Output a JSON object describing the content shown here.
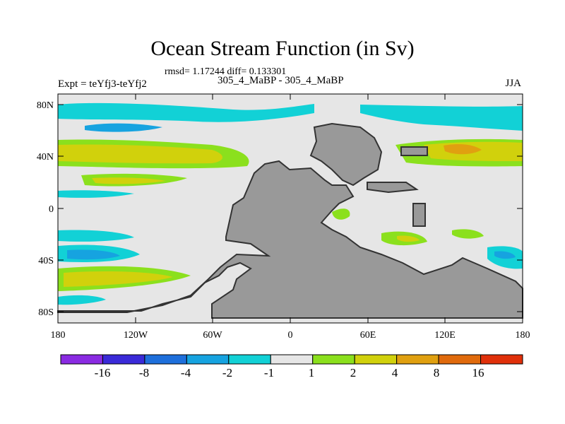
{
  "title": "Ocean Stream Function (in Sv)",
  "stats": "rmsd= 1.17244  diff= 0.133301",
  "experiment": "Expt = teYfj3-teYfj2",
  "period": "305_4_MaBP - 305_4_MaBP",
  "season": "JJA",
  "axes": {
    "lat_ticks": [
      "80N",
      "40N",
      "0",
      "40S",
      "80S"
    ],
    "lon_ticks": [
      "180",
      "120W",
      "60W",
      "0",
      "60E",
      "120E",
      "180"
    ]
  },
  "colorbar": {
    "colors": [
      "#8a2be2",
      "#3a2ad8",
      "#1e6fdb",
      "#16a3e0",
      "#12d1d6",
      "#e6e6e6",
      "#8be01d",
      "#d1d10c",
      "#e0a010",
      "#e06a0c",
      "#e0300a"
    ],
    "labels": [
      "-16",
      "-8",
      "-4",
      "-2",
      "-1",
      "1",
      "2",
      "4",
      "8",
      "16"
    ]
  },
  "colors": {
    "land": "#999999",
    "ocean_neutral": "#e6e6e6"
  }
}
